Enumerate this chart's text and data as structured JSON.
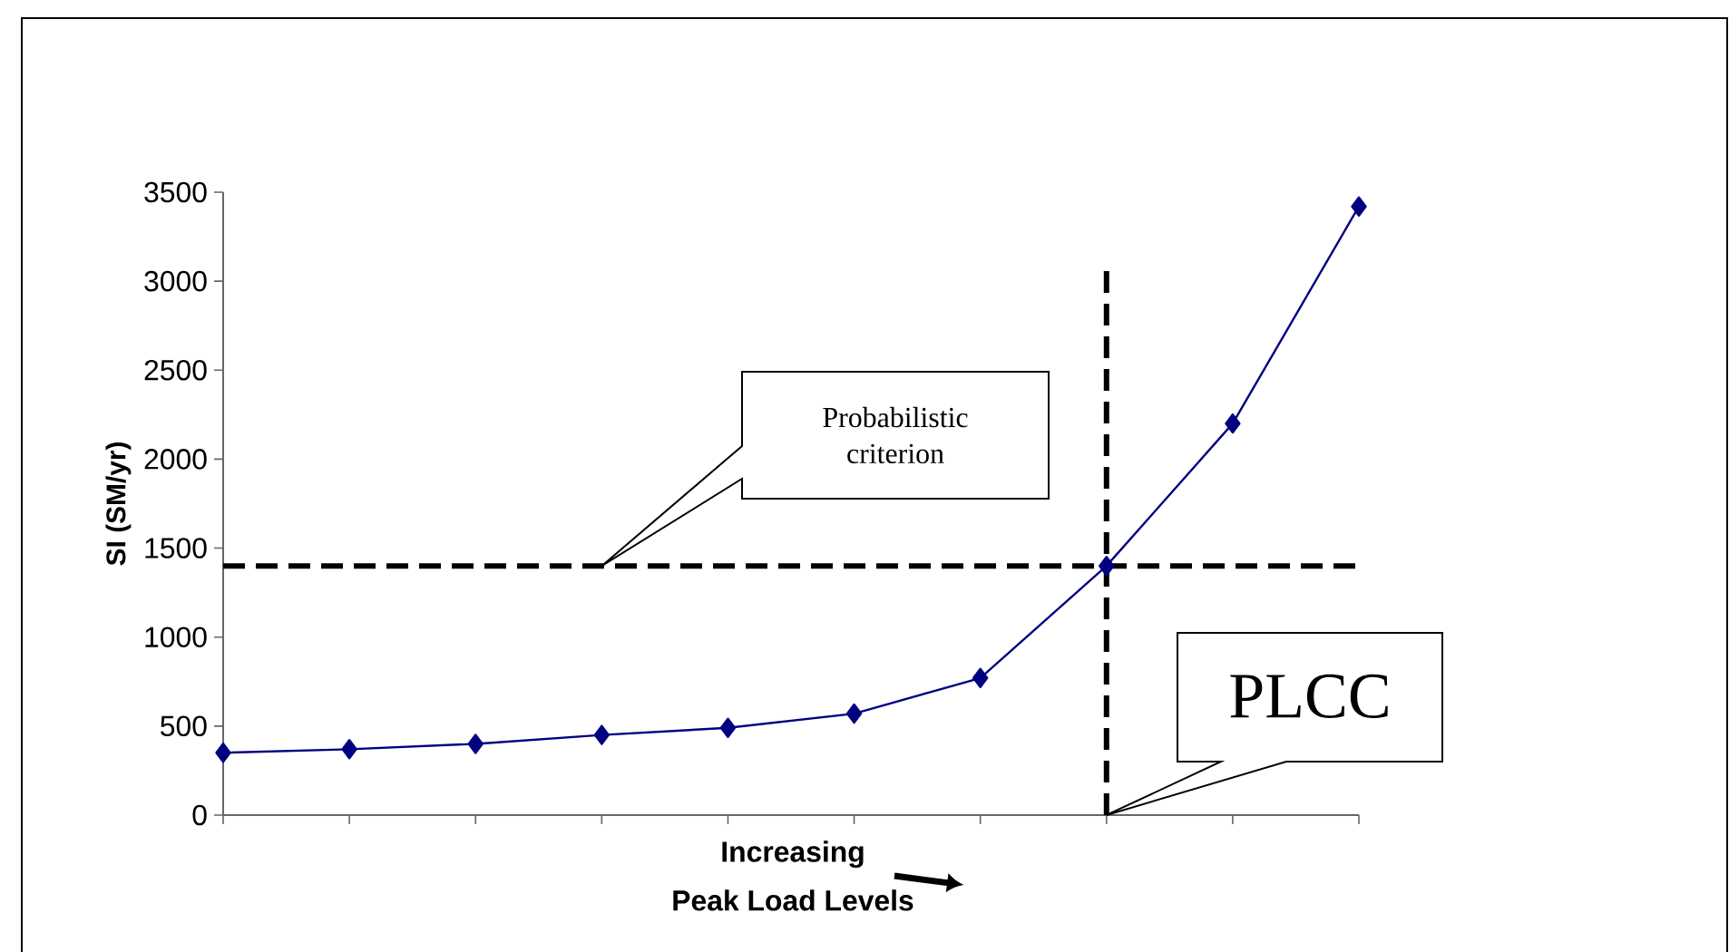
{
  "chart_data": {
    "type": "line",
    "xlabel": "Increasing Peak Load Levels",
    "ylabel": "SI (SM/yr)",
    "categories": [
      null,
      null,
      null,
      null,
      null,
      null,
      null,
      null,
      null,
      null
    ],
    "series": [
      {
        "color": "#000080",
        "values": [
          350,
          370,
          400,
          450,
          490,
          570,
          770,
          1400,
          2200,
          3420
        ]
      }
    ],
    "ylim": [
      0,
      3500
    ],
    "yticks": [
      0,
      500,
      1000,
      1500,
      2000,
      2500,
      3000,
      3500
    ],
    "tick_labels": "y",
    "grid": false,
    "marker": "diamond",
    "line_style": "solid",
    "ref_lines": [
      {
        "axis": "y",
        "value": 1400,
        "label": "Probabilistic criterion",
        "color": "#000000",
        "line_style": "dashed"
      }
    ],
    "annotations": [
      "PLCC"
    ]
  }
}
